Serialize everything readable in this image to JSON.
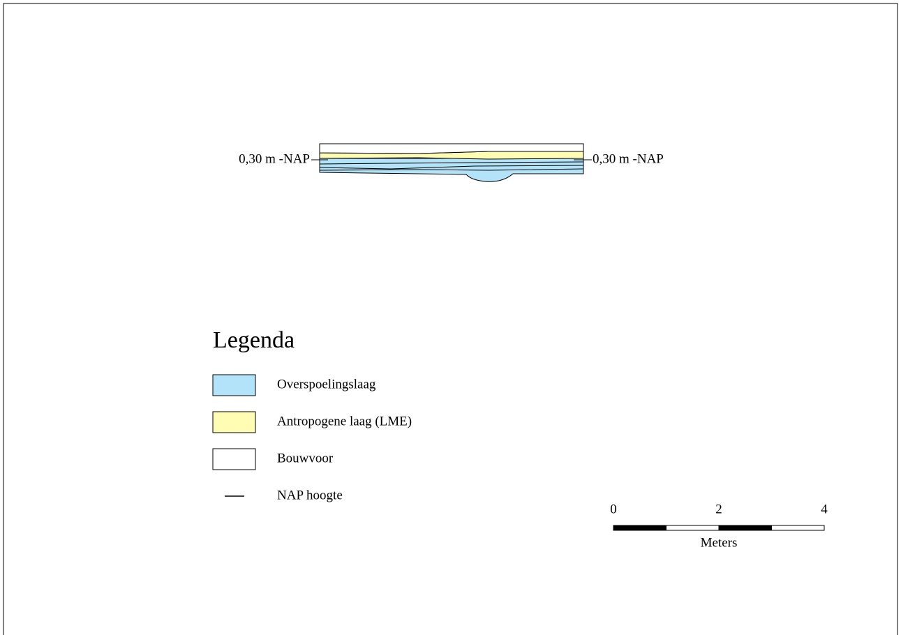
{
  "section": {
    "left_label": "0,30 m -NAP",
    "right_label": "0,30 m -NAP"
  },
  "legend": {
    "title": "Legenda",
    "items": [
      {
        "label": "Overspoelingslaag",
        "color": "#b3e3f8"
      },
      {
        "label": "Antropogene laag (LME)",
        "color": "#fffcb4"
      },
      {
        "label": "Bouwvoor",
        "color": "#ffffff"
      },
      {
        "label": "NAP hoogte"
      }
    ]
  },
  "scale_bar": {
    "ticks": [
      "0",
      "2",
      "4"
    ],
    "unit": "Meters"
  }
}
